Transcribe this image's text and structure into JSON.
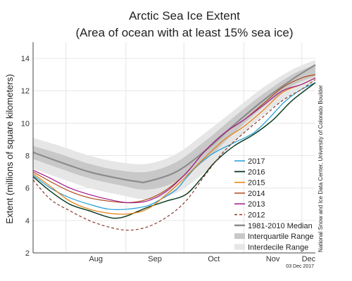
{
  "chart_data": {
    "type": "line",
    "title": "Arctic Sea Ice Extent",
    "subtitle": "(Area of ocean with at least 15% sea ice)",
    "xlabel": "",
    "ylabel": "Extent (millions of square kilometers)",
    "x_unit": "day of year",
    "xlim": [
      196,
      342
    ],
    "ylim": [
      2,
      15
    ],
    "yticks": [
      2,
      4,
      6,
      8,
      10,
      12,
      14
    ],
    "month_labels": [
      {
        "label": "Aug",
        "start": 213,
        "end": 244
      },
      {
        "label": "Sep",
        "start": 244,
        "end": 274
      },
      {
        "label": "Oct",
        "start": 274,
        "end": 305
      },
      {
        "label": "Nov",
        "start": 305,
        "end": 335
      },
      {
        "label": "Dec",
        "start": 335,
        "end": 342
      }
    ],
    "grid": true,
    "legend_position": "right",
    "credit": "National Snow and Ice Data Center, University of Colorado Boulder",
    "date_stamp": "03 Dec 2017",
    "bands": [
      {
        "name": "Interdecile Range",
        "color": "#e6e6e6",
        "x": [
          196,
          210,
          225,
          240,
          255,
          270,
          285,
          300,
          315,
          330,
          342
        ],
        "upper": [
          9.1,
          8.6,
          8.0,
          7.6,
          7.5,
          8.1,
          9.4,
          10.8,
          12.2,
          13.3,
          13.9
        ],
        "lower": [
          7.2,
          6.6,
          6.0,
          5.6,
          5.3,
          5.7,
          7.0,
          8.8,
          10.5,
          11.8,
          12.6
        ]
      },
      {
        "name": "Interquartile Range",
        "color": "#c8c8c8",
        "x": [
          196,
          210,
          225,
          240,
          255,
          270,
          285,
          300,
          315,
          330,
          342
        ],
        "upper": [
          8.6,
          8.1,
          7.5,
          7.1,
          7.0,
          7.6,
          8.9,
          10.4,
          11.8,
          13.0,
          13.6
        ],
        "lower": [
          7.8,
          7.2,
          6.6,
          6.2,
          5.9,
          6.4,
          7.7,
          9.4,
          11.0,
          12.3,
          12.9
        ]
      }
    ],
    "series": [
      {
        "name": "1981-2010 Median",
        "color": "#8c8c8c",
        "width": 2.2,
        "dash": "",
        "x": [
          196,
          210,
          225,
          240,
          250,
          255,
          270,
          285,
          300,
          315,
          330,
          342
        ],
        "y": [
          8.2,
          7.6,
          7.0,
          6.6,
          6.4,
          6.4,
          7.0,
          8.3,
          9.9,
          11.4,
          12.7,
          13.6
        ]
      },
      {
        "name": "2017",
        "color": "#1f9bd7",
        "width": 1.2,
        "dash": "",
        "x": [
          196,
          205,
          215,
          225,
          235,
          245,
          255,
          262,
          270,
          275,
          282,
          290,
          300,
          310,
          318,
          325,
          330,
          335,
          342
        ],
        "y": [
          6.8,
          6.0,
          5.4,
          5.0,
          4.7,
          4.7,
          4.9,
          5.3,
          5.9,
          6.6,
          7.5,
          8.2,
          8.8,
          9.4,
          10.3,
          11.2,
          11.7,
          12.1,
          12.5
        ]
      },
      {
        "name": "2016",
        "color": "#0a3d1f",
        "width": 1.5,
        "dash": "",
        "x": [
          196,
          205,
          215,
          225,
          235,
          240,
          245,
          255,
          265,
          275,
          283,
          290,
          300,
          310,
          320,
          330,
          342
        ],
        "y": [
          6.7,
          5.8,
          5.0,
          4.6,
          4.2,
          4.15,
          4.3,
          4.8,
          5.2,
          5.6,
          6.6,
          7.6,
          8.6,
          9.3,
          10.2,
          11.4,
          12.5
        ]
      },
      {
        "name": "2015",
        "color": "#e87d0d",
        "width": 1.2,
        "dash": "",
        "x": [
          196,
          205,
          215,
          225,
          235,
          245,
          255,
          265,
          275,
          285,
          295,
          305,
          315,
          325,
          335,
          342
        ],
        "y": [
          6.9,
          6.1,
          5.2,
          4.7,
          4.45,
          4.4,
          4.7,
          5.6,
          6.7,
          7.9,
          9.0,
          9.8,
          10.8,
          11.9,
          12.4,
          12.8
        ]
      },
      {
        "name": "2014",
        "color": "#b04a19",
        "width": 1.2,
        "dash": "",
        "x": [
          196,
          205,
          215,
          225,
          235,
          245,
          255,
          265,
          275,
          285,
          295,
          305,
          315,
          325,
          335,
          342
        ],
        "y": [
          7.0,
          6.4,
          5.8,
          5.4,
          5.2,
          5.1,
          5.3,
          5.9,
          6.9,
          8.3,
          9.4,
          10.2,
          11.2,
          12.2,
          12.8,
          13.0
        ]
      },
      {
        "name": "2013",
        "color": "#a01a8c",
        "width": 1.2,
        "dash": "",
        "x": [
          196,
          205,
          215,
          225,
          235,
          245,
          255,
          265,
          275,
          285,
          295,
          305,
          315,
          325,
          335,
          342
        ],
        "y": [
          7.1,
          6.6,
          6.0,
          5.6,
          5.3,
          5.1,
          5.2,
          5.8,
          6.9,
          8.3,
          9.4,
          10.2,
          11.1,
          12.0,
          12.4,
          12.8
        ]
      },
      {
        "name": "2012",
        "color": "#8b3a2e",
        "width": 1.2,
        "dash": "4,3",
        "x": [
          196,
          205,
          215,
          225,
          235,
          245,
          255,
          265,
          275,
          285,
          295,
          305,
          315,
          325,
          335,
          342
        ],
        "y": [
          6.5,
          5.3,
          4.6,
          4.0,
          3.6,
          3.4,
          3.6,
          4.2,
          5.2,
          6.8,
          8.3,
          9.4,
          10.4,
          11.4,
          12.1,
          12.7
        ]
      }
    ]
  }
}
